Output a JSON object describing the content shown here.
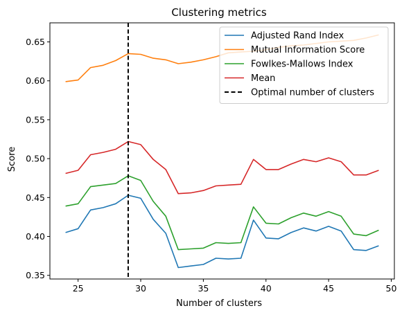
{
  "chart_data": {
    "type": "line",
    "title": "Clustering metrics",
    "xlabel": "Number of clusters",
    "ylabel": "Score",
    "xlim": [
      22.75,
      50.25
    ],
    "ylim": [
      0.3453,
      0.6745
    ],
    "xticks": [
      25,
      30,
      35,
      40,
      45,
      50
    ],
    "yticks": [
      0.35,
      0.4,
      0.45,
      0.5,
      0.55,
      0.6,
      0.65
    ],
    "x": [
      24,
      25,
      26,
      27,
      28,
      29,
      30,
      31,
      32,
      33,
      34,
      35,
      36,
      37,
      38,
      39,
      40,
      41,
      42,
      43,
      44,
      45,
      46,
      47,
      48,
      49
    ],
    "series": [
      {
        "name": "Adjusted Rand Index",
        "color": "#1f77b4",
        "values": [
          0.405,
          0.41,
          0.434,
          0.437,
          0.442,
          0.453,
          0.449,
          0.422,
          0.404,
          0.36,
          0.362,
          0.364,
          0.372,
          0.371,
          0.372,
          0.421,
          0.398,
          0.397,
          0.405,
          0.411,
          0.407,
          0.413,
          0.407,
          0.383,
          0.382,
          0.388
        ]
      },
      {
        "name": "Mutual Information Score",
        "color": "#ff7f0e",
        "values": [
          0.599,
          0.601,
          0.617,
          0.62,
          0.626,
          0.635,
          0.634,
          0.629,
          0.627,
          0.622,
          0.624,
          0.627,
          0.631,
          0.636,
          0.637,
          0.638,
          0.64,
          0.643,
          0.645,
          0.646,
          0.648,
          0.65,
          0.651,
          0.652,
          0.655,
          0.659
        ]
      },
      {
        "name": "Fowlkes-Mallows Index",
        "color": "#2ca02c",
        "values": [
          0.439,
          0.442,
          0.464,
          0.466,
          0.468,
          0.478,
          0.472,
          0.445,
          0.426,
          0.383,
          0.384,
          0.385,
          0.392,
          0.391,
          0.392,
          0.438,
          0.417,
          0.416,
          0.424,
          0.43,
          0.426,
          0.432,
          0.426,
          0.403,
          0.401,
          0.408
        ]
      },
      {
        "name": "Mean",
        "color": "#d62728",
        "values": [
          0.481,
          0.485,
          0.505,
          0.508,
          0.512,
          0.522,
          0.518,
          0.499,
          0.486,
          0.455,
          0.456,
          0.459,
          0.465,
          0.466,
          0.467,
          0.499,
          0.486,
          0.486,
          0.493,
          0.499,
          0.496,
          0.501,
          0.496,
          0.479,
          0.479,
          0.485
        ]
      }
    ],
    "vline": {
      "x": 29,
      "name": "Optimal number of clusters",
      "color": "#000000",
      "style": "dashed"
    },
    "legend_position": "top-right",
    "grid": false
  }
}
